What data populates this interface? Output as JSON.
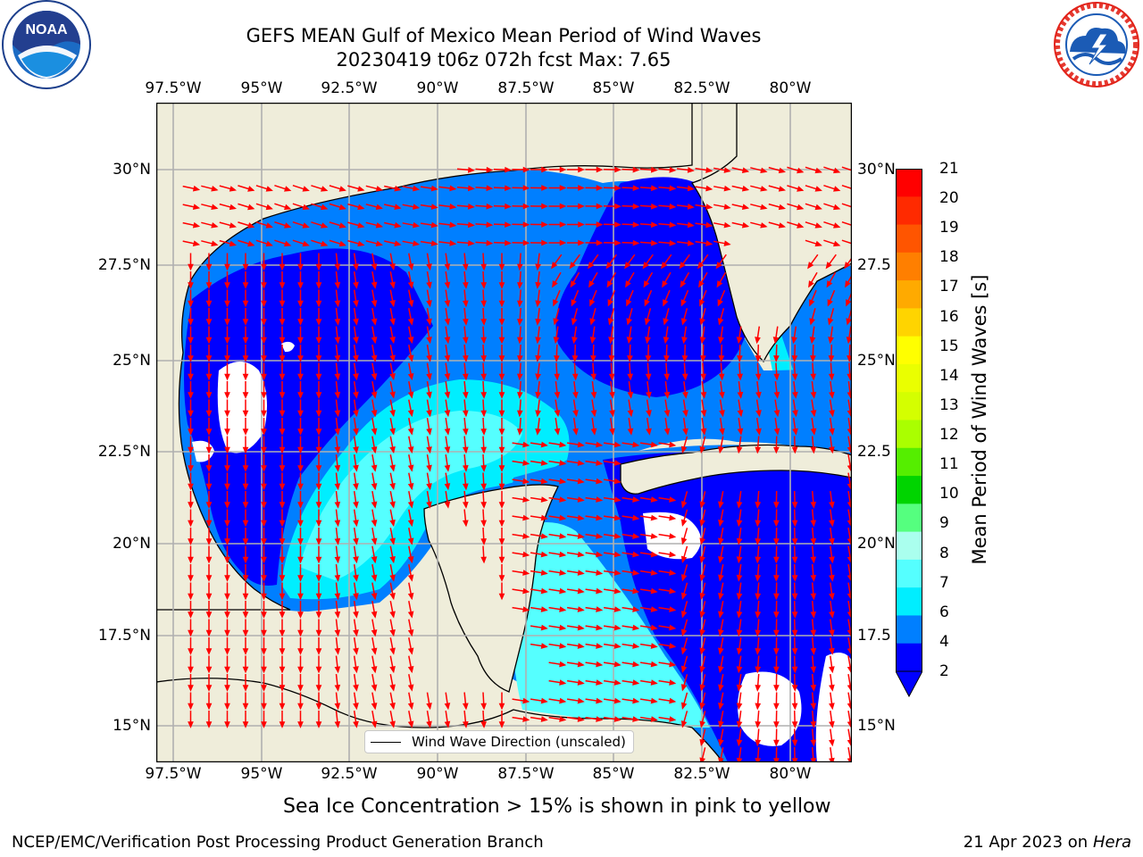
{
  "title": {
    "line1": "GEFS MEAN Gulf of Mexico Mean Period of Wind Waves",
    "line2": "20230419 t06z 072h fcst   Max: 7.65"
  },
  "map": {
    "lon_ticks": [
      "97.5°W",
      "95°W",
      "92.5°W",
      "90°W",
      "87.5°W",
      "85°W",
      "82.5°W",
      "80°W"
    ],
    "lat_ticks_left": [
      "30°N",
      "27.5°N",
      "25°N",
      "22.5°N",
      "20°N",
      "17.5°N",
      "15°N"
    ],
    "lat_ticks_right": [
      "30°N",
      "27.5",
      "25°N",
      "22.5",
      "20°N",
      "17.5",
      "15°N"
    ],
    "legend_label": "Wind Wave Direction (unscaled)",
    "land_color": "#efedda",
    "arrow_color": "#ff0000",
    "grid_color": "#b0b0b0"
  },
  "colorbar": {
    "label": "Mean Period of Wind Waves [s]",
    "ticks": [
      "21",
      "20",
      "19",
      "18",
      "17",
      "16",
      "15",
      "14",
      "13",
      "12",
      "11",
      "10",
      "9",
      "8",
      "7",
      "6",
      "4",
      "2"
    ],
    "colors": [
      "#ff0000",
      "#ff2a00",
      "#ff5500",
      "#ff7f00",
      "#ffaa00",
      "#ffd400",
      "#ffff00",
      "#eaff00",
      "#d4ff00",
      "#aaff00",
      "#55ee00",
      "#00d400",
      "#55ff7f",
      "#aaffee",
      "#55ffff",
      "#00eeff",
      "#007fff",
      "#0000ff"
    ]
  },
  "note": "Sea Ice Concentration > 15% is shown in pink to yellow",
  "footer": {
    "left": "NCEP/EMC/Verification Post Processing Product Generation Branch",
    "right_date": "21 Apr 2023 on ",
    "right_host": "Hera"
  },
  "logos": {
    "noaa": "NOAA",
    "nws_ring": "NATIONAL WEATHER SERVICE"
  }
}
